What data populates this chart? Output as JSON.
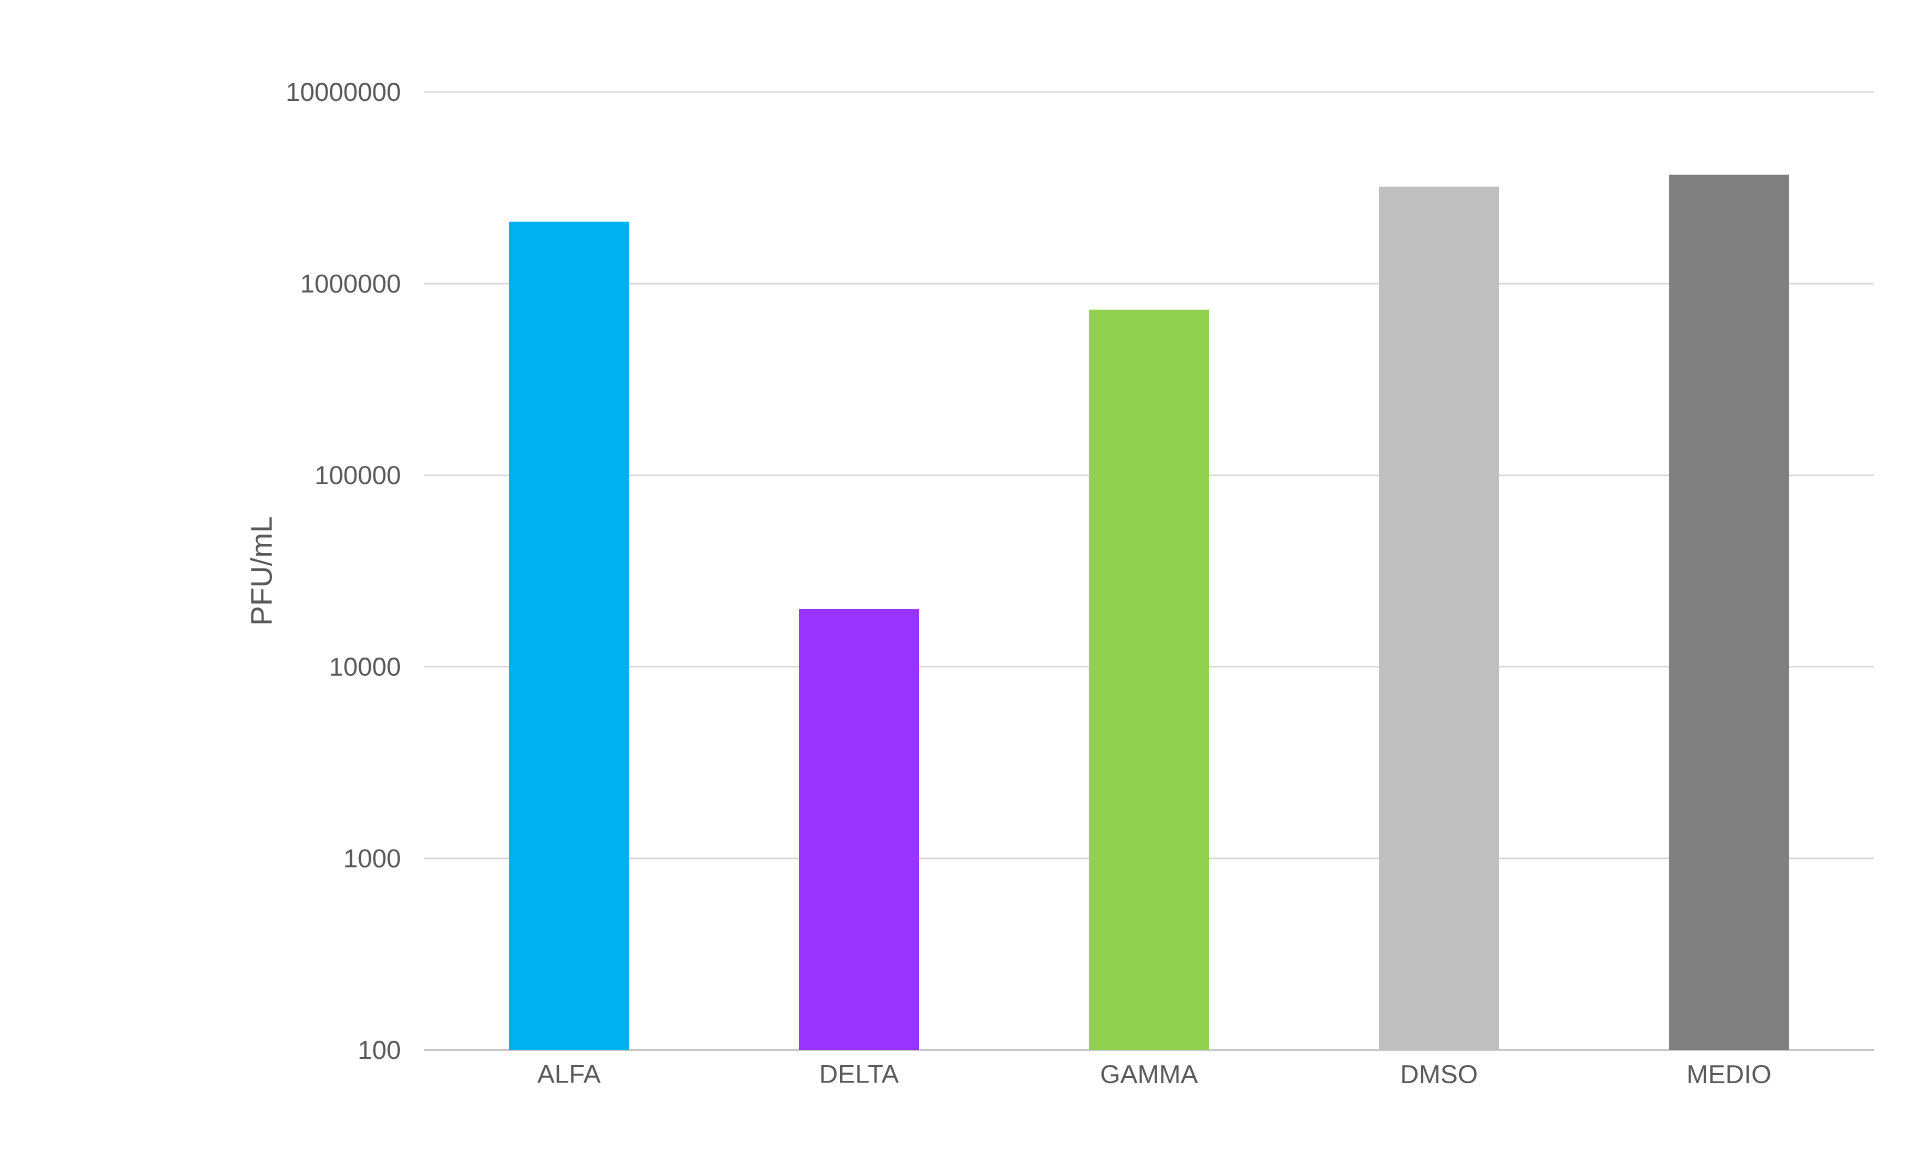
{
  "chart_data": {
    "type": "bar",
    "ylabel": "PFU/mL",
    "categories": [
      "ALFA",
      "DELTA",
      "GAMMA",
      "DMSO",
      "MEDIO"
    ],
    "values": [
      2100000,
      20000,
      730000,
      3200000,
      3700000
    ],
    "colors": [
      "#00b0f0",
      "#9933ff",
      "#92d050",
      "#bfbfbf",
      "#808080"
    ],
    "log": true,
    "ylim": [
      100,
      10000000
    ],
    "yticks": [
      100,
      1000,
      10000,
      100000,
      1000000,
      10000000
    ],
    "grid": "y"
  }
}
